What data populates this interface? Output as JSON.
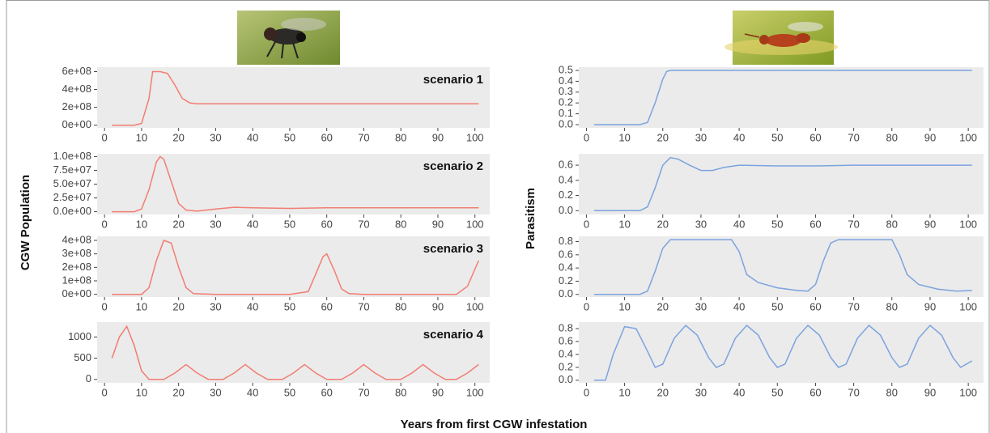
{
  "labels": {
    "ylabel_left": "CGW Population",
    "ylabel_right": "Parasitism",
    "xlabel": "Years from first CGW infestation"
  },
  "chart_data": [
    {
      "type": "line",
      "title": "scenario 1",
      "color": "#f27d72",
      "grid": false,
      "x": [
        2,
        8,
        10,
        12,
        13,
        15,
        17,
        19,
        21,
        23,
        25,
        101
      ],
      "values": [
        0,
        0,
        20000000,
        300000000,
        600000000,
        600000000,
        580000000,
        450000000,
        300000000,
        250000000,
        240000000,
        240000000
      ],
      "xlim": [
        -2,
        104
      ],
      "xticks": [
        0,
        10,
        20,
        30,
        40,
        50,
        60,
        70,
        80,
        90,
        100
      ],
      "ylim": [
        -30000000,
        650000000
      ],
      "yticks": [
        {
          "value": 0,
          "label": "0e+00"
        },
        {
          "value": 200000000,
          "label": "2e+08"
        },
        {
          "value": 400000000,
          "label": "4e+08"
        },
        {
          "value": 600000000,
          "label": "6e+08"
        }
      ]
    },
    {
      "type": "line",
      "title": "scenario 2",
      "color": "#f27d72",
      "grid": false,
      "x": [
        2,
        8,
        10,
        12,
        14,
        15,
        16,
        18,
        20,
        22,
        25,
        30,
        35,
        40,
        50,
        60,
        70,
        80,
        90,
        101
      ],
      "values": [
        0,
        0,
        5000000,
        40000000,
        90000000,
        100000000,
        95000000,
        55000000,
        15000000,
        3000000,
        1000000,
        5000000,
        8000000,
        7000000,
        6000000,
        7000000,
        7000000,
        7000000,
        7000000,
        7000000
      ],
      "xlim": [
        -2,
        104
      ],
      "xticks": [
        0,
        10,
        20,
        30,
        40,
        50,
        60,
        70,
        80,
        90,
        100
      ],
      "ylim": [
        -5000000,
        105000000
      ],
      "yticks": [
        {
          "value": 0,
          "label": "0.0e+00"
        },
        {
          "value": 25000000,
          "label": "2.5e+07"
        },
        {
          "value": 50000000,
          "label": "5.0e+07"
        },
        {
          "value": 75000000,
          "label": "7.5e+07"
        },
        {
          "value": 100000000,
          "label": "1.0e+08"
        }
      ]
    },
    {
      "type": "line",
      "title": "scenario 3",
      "color": "#f27d72",
      "grid": false,
      "x": [
        2,
        10,
        12,
        14,
        16,
        18,
        20,
        22,
        24,
        30,
        50,
        55,
        57,
        59,
        60,
        62,
        64,
        66,
        70,
        95,
        98,
        101
      ],
      "values": [
        0,
        0,
        50000000,
        250000000,
        400000000,
        380000000,
        200000000,
        50000000,
        5000000,
        0,
        0,
        20000000,
        150000000,
        280000000,
        300000000,
        180000000,
        40000000,
        5000000,
        0,
        0,
        60000000,
        250000000
      ],
      "xlim": [
        -2,
        104
      ],
      "xticks": [
        0,
        10,
        20,
        30,
        40,
        50,
        60,
        70,
        80,
        90,
        100
      ],
      "ylim": [
        -20000000,
        430000000
      ],
      "yticks": [
        {
          "value": 0,
          "label": "0e+00"
        },
        {
          "value": 100000000,
          "label": "1e+08"
        },
        {
          "value": 200000000,
          "label": "2e+08"
        },
        {
          "value": 300000000,
          "label": "3e+08"
        },
        {
          "value": 400000000,
          "label": "4e+08"
        }
      ]
    },
    {
      "type": "line",
      "title": "scenario 4",
      "color": "#f27d72",
      "grid": false,
      "x": [
        2,
        4,
        6,
        8,
        10,
        12,
        16,
        19,
        22,
        25,
        28,
        32,
        35,
        38,
        41,
        44,
        48,
        51,
        54,
        57,
        60,
        64,
        67,
        70,
        73,
        76,
        80,
        83,
        86,
        89,
        92,
        95,
        98,
        101
      ],
      "values": [
        500,
        1000,
        1250,
        800,
        200,
        0,
        0,
        150,
        350,
        150,
        0,
        0,
        150,
        350,
        150,
        0,
        0,
        150,
        350,
        150,
        0,
        0,
        150,
        350,
        150,
        0,
        0,
        150,
        350,
        150,
        0,
        0,
        150,
        350
      ],
      "xlim": [
        -2,
        104
      ],
      "xticks": [
        0,
        10,
        20,
        30,
        40,
        50,
        60,
        70,
        80,
        90,
        100
      ],
      "ylim": [
        -80,
        1350
      ],
      "yticks": [
        0,
        500,
        1000
      ]
    },
    {
      "type": "line",
      "color": "#7ba3de",
      "grid": false,
      "x": [
        2,
        14,
        16,
        18,
        20,
        21,
        22,
        101
      ],
      "values": [
        0,
        0,
        0.02,
        0.2,
        0.42,
        0.49,
        0.5,
        0.5
      ],
      "xlim": [
        -2,
        104
      ],
      "xticks": [
        0,
        10,
        20,
        30,
        40,
        50,
        60,
        70,
        80,
        90,
        100
      ],
      "ylim": [
        -0.03,
        0.53
      ],
      "yticks": [
        {
          "value": 0,
          "label": "0.0"
        },
        0.1,
        0.2,
        0.3,
        0.4,
        0.5
      ]
    },
    {
      "type": "line",
      "color": "#7ba3de",
      "grid": false,
      "x": [
        2,
        14,
        16,
        18,
        20,
        22,
        24,
        27,
        30,
        33,
        36,
        40,
        50,
        60,
        70,
        80,
        90,
        101
      ],
      "values": [
        0,
        0,
        0.05,
        0.3,
        0.6,
        0.7,
        0.68,
        0.6,
        0.53,
        0.53,
        0.57,
        0.6,
        0.59,
        0.59,
        0.6,
        0.6,
        0.6,
        0.6
      ],
      "xlim": [
        -2,
        104
      ],
      "xticks": [
        0,
        10,
        20,
        30,
        40,
        50,
        60,
        70,
        80,
        90,
        100
      ],
      "ylim": [
        -0.05,
        0.75
      ],
      "yticks": [
        {
          "value": 0,
          "label": "0.0"
        },
        0.2,
        0.4,
        0.6
      ]
    },
    {
      "type": "line",
      "color": "#7ba3de",
      "grid": false,
      "x": [
        2,
        14,
        16,
        18,
        20,
        22,
        38,
        40,
        42,
        45,
        50,
        55,
        58,
        60,
        62,
        64,
        66,
        80,
        82,
        84,
        87,
        92,
        97,
        101
      ],
      "values": [
        0,
        0,
        0.05,
        0.35,
        0.7,
        0.83,
        0.83,
        0.65,
        0.3,
        0.18,
        0.1,
        0.06,
        0.05,
        0.15,
        0.5,
        0.78,
        0.83,
        0.83,
        0.6,
        0.3,
        0.15,
        0.08,
        0.05,
        0.06
      ],
      "xlim": [
        -2,
        104
      ],
      "xticks": [
        0,
        10,
        20,
        30,
        40,
        50,
        60,
        70,
        80,
        90,
        100
      ],
      "ylim": [
        -0.04,
        0.88
      ],
      "yticks": [
        {
          "value": 0,
          "label": "0.0"
        },
        0.2,
        0.4,
        0.6,
        0.8
      ]
    },
    {
      "type": "line",
      "color": "#7ba3de",
      "grid": false,
      "x": [
        2,
        5,
        7,
        10,
        13,
        16,
        18,
        20,
        23,
        26,
        29,
        32,
        34,
        36,
        39,
        42,
        45,
        48,
        50,
        52,
        55,
        58,
        61,
        64,
        66,
        68,
        71,
        74,
        77,
        80,
        82,
        84,
        87,
        90,
        93,
        96,
        98,
        101
      ],
      "values": [
        0,
        0,
        0.4,
        0.83,
        0.8,
        0.45,
        0.2,
        0.25,
        0.65,
        0.85,
        0.7,
        0.35,
        0.2,
        0.25,
        0.65,
        0.85,
        0.7,
        0.35,
        0.2,
        0.25,
        0.65,
        0.85,
        0.7,
        0.35,
        0.2,
        0.25,
        0.65,
        0.85,
        0.7,
        0.35,
        0.2,
        0.25,
        0.65,
        0.85,
        0.7,
        0.35,
        0.2,
        0.3
      ],
      "xlim": [
        -2,
        104
      ],
      "xticks": [
        0,
        10,
        20,
        30,
        40,
        50,
        60,
        70,
        80,
        90,
        100
      ],
      "ylim": [
        -0.04,
        0.9
      ],
      "yticks": [
        {
          "value": 0,
          "label": "0.0"
        },
        0.2,
        0.4,
        0.6,
        0.8
      ]
    }
  ]
}
